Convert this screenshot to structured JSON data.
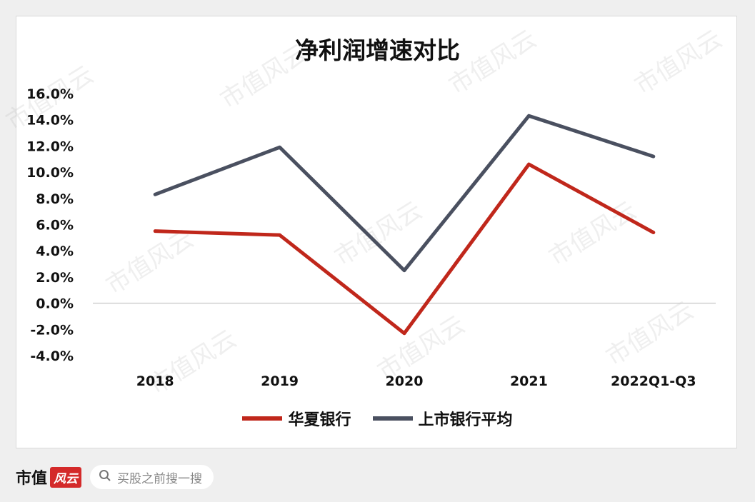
{
  "chart_data": {
    "type": "line",
    "title": "净利润增速对比",
    "categories": [
      "2018",
      "2019",
      "2020",
      "2021",
      "2022Q1-Q3"
    ],
    "y_ticks": [
      "16.0%",
      "14.0%",
      "12.0%",
      "10.0%",
      "8.0%",
      "6.0%",
      "4.0%",
      "2.0%",
      "0.0%",
      "-2.0%",
      "-4.0%"
    ],
    "ylim": [
      -4,
      16
    ],
    "y_unit": "%",
    "series": [
      {
        "name": "华夏银行",
        "color": "#c0271b",
        "values": [
          5.5,
          5.2,
          -2.3,
          10.6,
          5.4
        ]
      },
      {
        "name": "上市银行平均",
        "color": "#4a5060",
        "values": [
          8.3,
          11.9,
          2.5,
          14.3,
          11.2
        ]
      }
    ],
    "grid": false,
    "legend_position": "bottom"
  },
  "footer": {
    "brand_text": "市值",
    "brand_badge": "风云",
    "search_placeholder": "买股之前搜一搜"
  },
  "watermark_text": "市值风云"
}
